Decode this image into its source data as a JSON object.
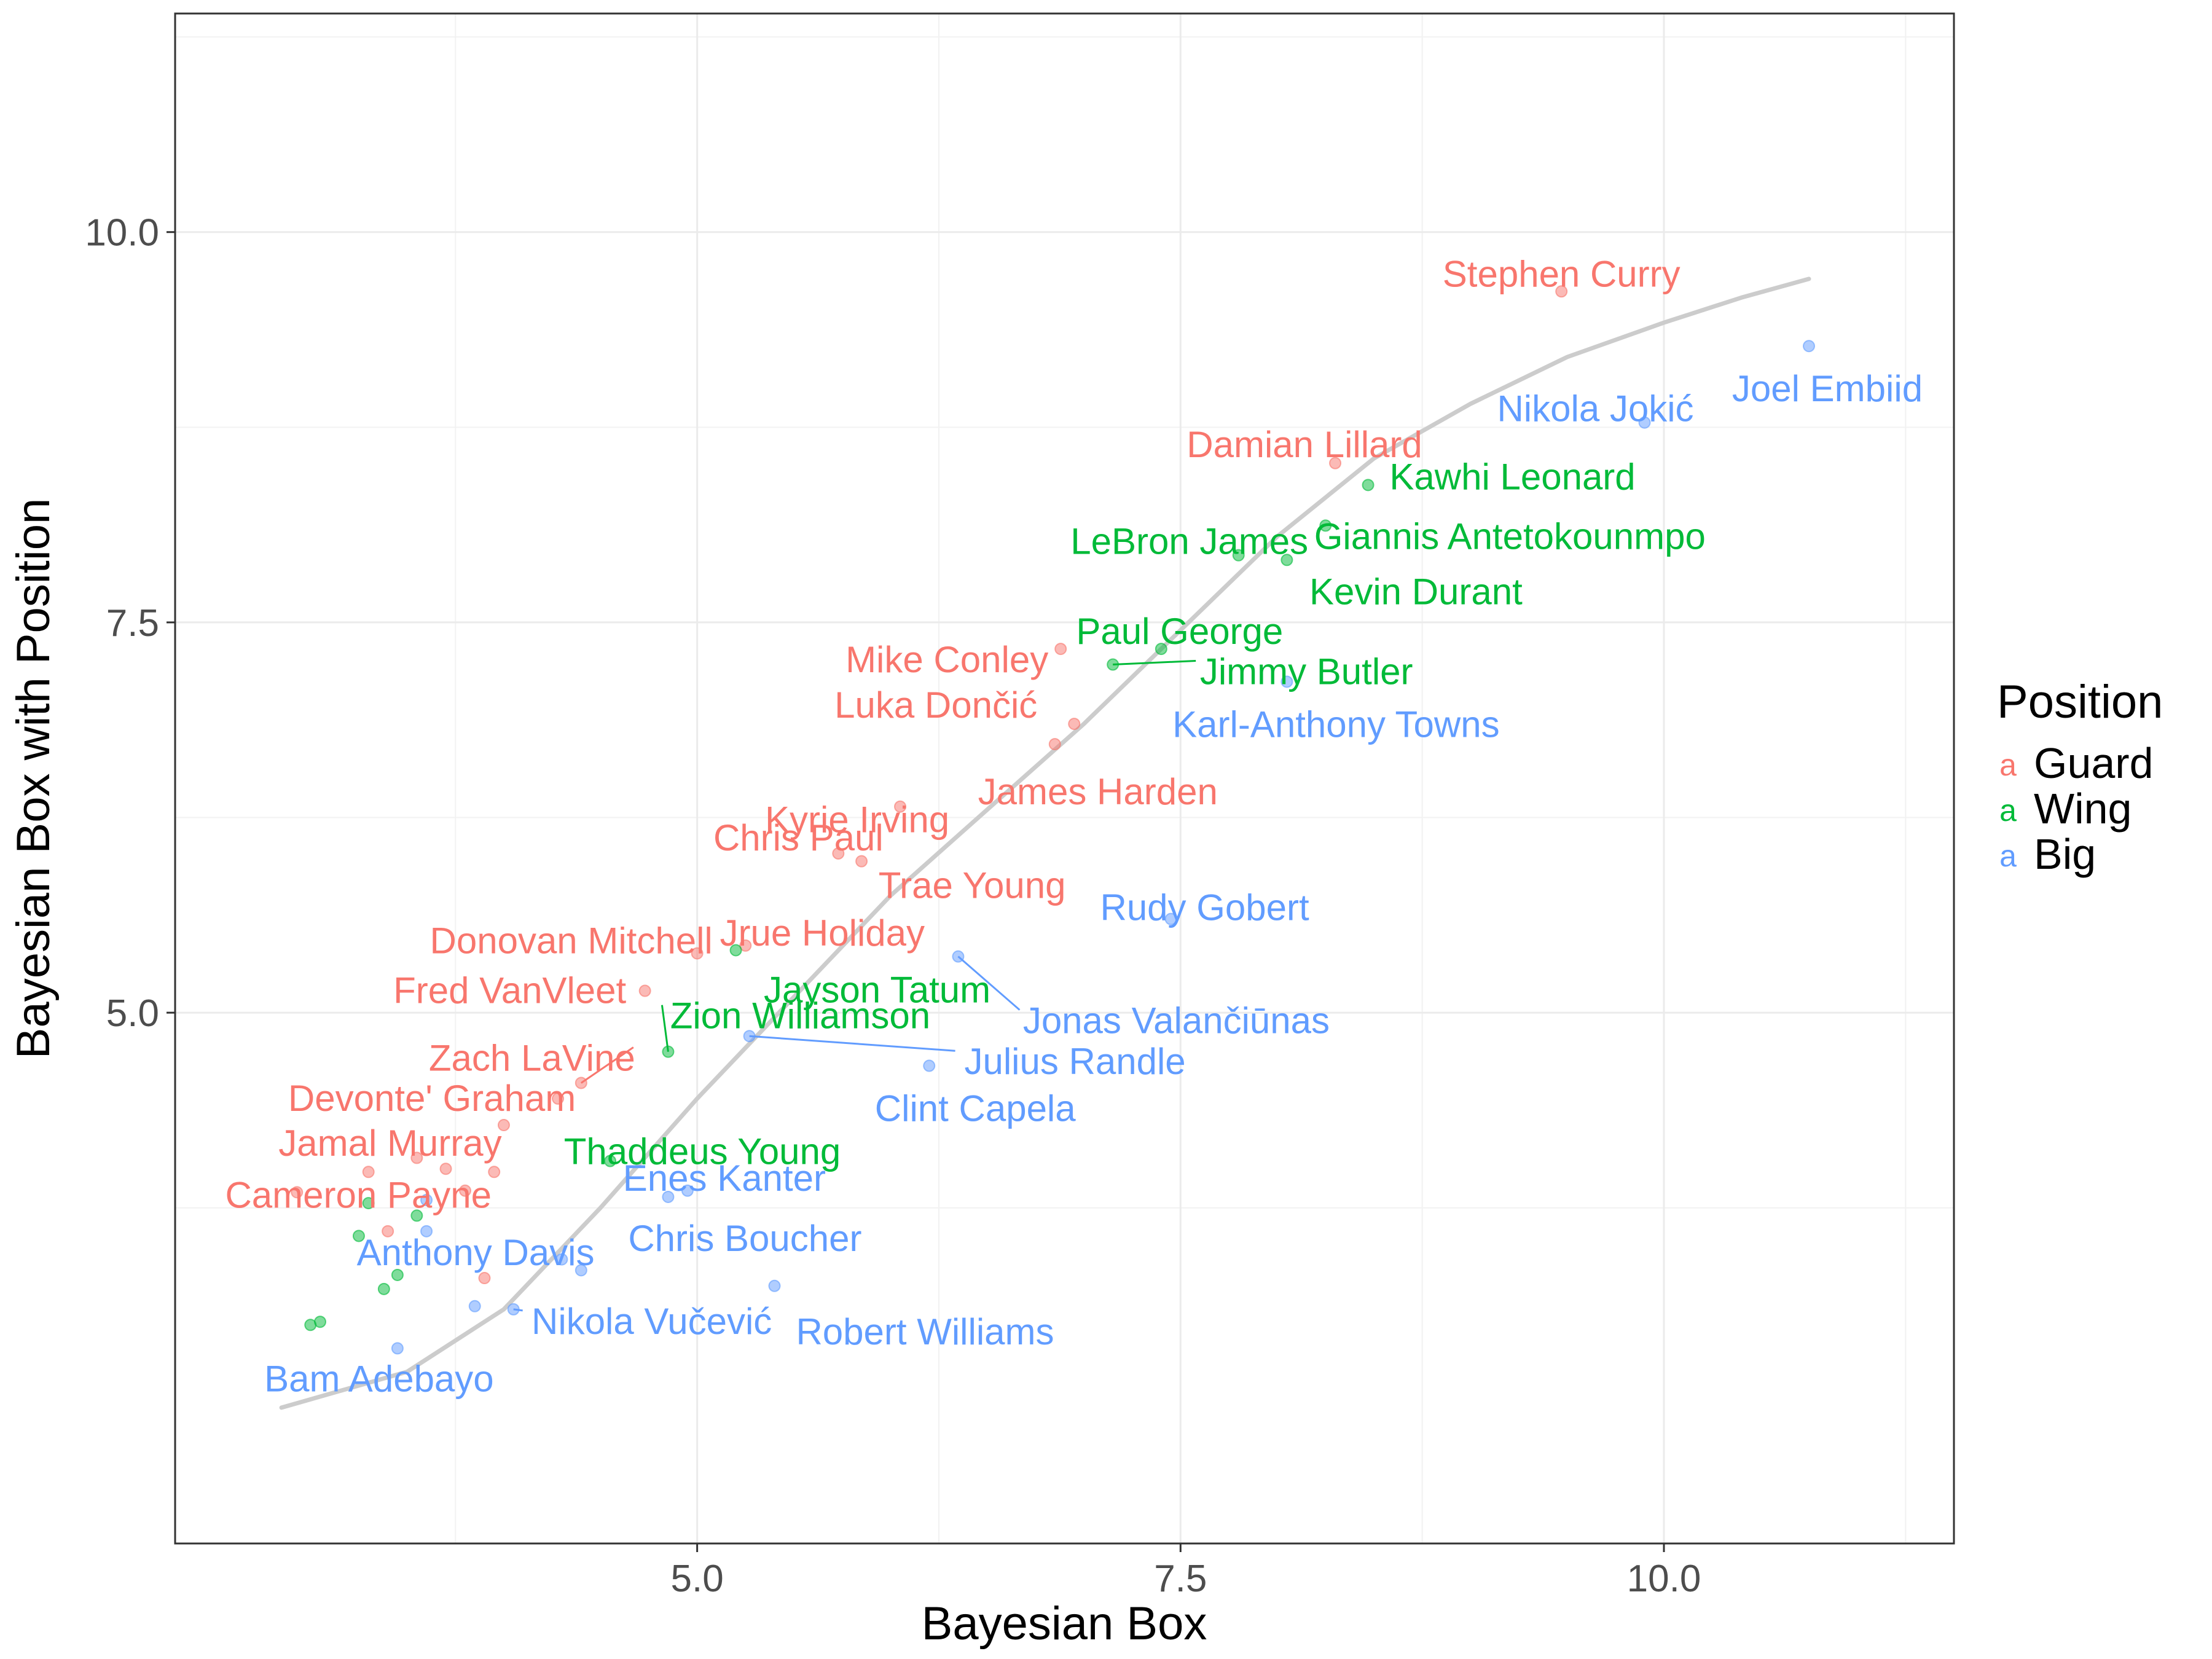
{
  "chart_data": {
    "type": "scatter",
    "xlabel": "Bayesian Box",
    "ylabel": "Bayesian Box with Position",
    "xlim": [
      2.3,
      11.5
    ],
    "ylim": [
      1.6,
      11.4
    ],
    "x_ticks": [
      5.0,
      7.5,
      10.0
    ],
    "x_tick_labels": [
      "5.0",
      "7.5",
      "10.0"
    ],
    "y_ticks": [
      5.0,
      7.5,
      10.0
    ],
    "y_tick_labels": [
      "5.0",
      "7.5",
      "10.0"
    ],
    "grid": true,
    "legend": {
      "title": "Position",
      "placement": "right",
      "key_glyph": "a",
      "entries": [
        {
          "name": "Guard",
          "color": "#F8766D"
        },
        {
          "name": "Wing",
          "color": "#00BA38"
        },
        {
          "name": "Big",
          "color": "#619CFF"
        }
      ]
    },
    "smooth_color": "#cccccc",
    "smooth": [
      {
        "x": 2.85,
        "y": 2.47
      },
      {
        "x": 3.5,
        "y": 2.7
      },
      {
        "x": 4.0,
        "y": 3.1
      },
      {
        "x": 4.5,
        "y": 3.75
      },
      {
        "x": 5.0,
        "y": 4.45
      },
      {
        "x": 5.5,
        "y": 5.1
      },
      {
        "x": 6.0,
        "y": 5.75
      },
      {
        "x": 6.5,
        "y": 6.3
      },
      {
        "x": 7.0,
        "y": 6.85
      },
      {
        "x": 7.5,
        "y": 7.45
      },
      {
        "x": 8.0,
        "y": 8.05
      },
      {
        "x": 8.5,
        "y": 8.55
      },
      {
        "x": 9.0,
        "y": 8.9
      },
      {
        "x": 9.5,
        "y": 9.2
      },
      {
        "x": 10.0,
        "y": 9.42
      },
      {
        "x": 10.4,
        "y": 9.58
      },
      {
        "x": 10.75,
        "y": 9.7
      }
    ],
    "series": [
      {
        "name": "Guard",
        "color": "#F8766D",
        "points": [
          {
            "x": 9.47,
            "y": 9.62,
            "label": "Stephen Curry"
          },
          {
            "x": 8.3,
            "y": 8.52,
            "label": "Damian Lillard"
          },
          {
            "x": 6.88,
            "y": 7.33,
            "label": "Mike Conley"
          },
          {
            "x": 6.95,
            "y": 6.85,
            "label": "Luka Dončić"
          },
          {
            "x": 6.85,
            "y": 6.72,
            "label": "James Harden"
          },
          {
            "x": 6.05,
            "y": 6.32,
            "label": "Kyrie Irving"
          },
          {
            "x": 5.73,
            "y": 6.02,
            "label": "Chris Paul"
          },
          {
            "x": 5.85,
            "y": 5.97,
            "label": "Trae Young"
          },
          {
            "x": 5.25,
            "y": 5.43,
            "label": "Jrue Holiday"
          },
          {
            "x": 5.0,
            "y": 5.38,
            "label": "Donovan Mitchell"
          },
          {
            "x": 4.73,
            "y": 5.14,
            "label": "Fred VanVleet"
          },
          {
            "x": 4.4,
            "y": 4.55,
            "label": "Zach LaVine"
          },
          {
            "x": 4.28,
            "y": 4.45,
            "label": "Devonte' Graham"
          },
          {
            "x": 4.0,
            "y": 4.28,
            "label": "Jamal Murray"
          },
          {
            "x": 2.93,
            "y": 3.85,
            "label": "Cameron Payne"
          },
          {
            "x": 3.3,
            "y": 3.98,
            "label": ""
          },
          {
            "x": 3.55,
            "y": 4.07,
            "label": ""
          },
          {
            "x": 3.7,
            "y": 4.0,
            "label": ""
          },
          {
            "x": 3.95,
            "y": 3.98,
            "label": ""
          },
          {
            "x": 3.8,
            "y": 3.86,
            "label": ""
          },
          {
            "x": 3.4,
            "y": 3.6,
            "label": ""
          },
          {
            "x": 3.9,
            "y": 3.3,
            "label": ""
          }
        ]
      },
      {
        "name": "Wing",
        "color": "#00BA38",
        "points": [
          {
            "x": 8.47,
            "y": 8.38,
            "label": "Kawhi Leonard"
          },
          {
            "x": 8.25,
            "y": 8.12,
            "label": "Giannis Antetokounmpo"
          },
          {
            "x": 7.8,
            "y": 7.93,
            "label": "LeBron James"
          },
          {
            "x": 8.05,
            "y": 7.9,
            "label": "Kevin Durant"
          },
          {
            "x": 7.4,
            "y": 7.33,
            "label": "Paul George"
          },
          {
            "x": 7.15,
            "y": 7.23,
            "label": "Jimmy Butler"
          },
          {
            "x": 5.2,
            "y": 5.4,
            "label": "Jayson Tatum"
          },
          {
            "x": 4.85,
            "y": 4.75,
            "label": "Zion Williamson"
          },
          {
            "x": 4.55,
            "y": 4.05,
            "label": "Thaddeus Young"
          },
          {
            "x": 3.3,
            "y": 3.78,
            "label": ""
          },
          {
            "x": 3.55,
            "y": 3.7,
            "label": ""
          },
          {
            "x": 3.25,
            "y": 3.57,
            "label": ""
          },
          {
            "x": 3.45,
            "y": 3.32,
            "label": ""
          },
          {
            "x": 3.38,
            "y": 3.23,
            "label": ""
          },
          {
            "x": 3.0,
            "y": 3.0,
            "label": ""
          },
          {
            "x": 3.05,
            "y": 3.02,
            "label": ""
          }
        ]
      },
      {
        "name": "Big",
        "color": "#619CFF",
        "points": [
          {
            "x": 10.75,
            "y": 9.27,
            "label": "Joel Embiid"
          },
          {
            "x": 9.9,
            "y": 8.78,
            "label": "Nikola Jokić"
          },
          {
            "x": 8.05,
            "y": 7.12,
            "label": "Karl-Anthony Towns"
          },
          {
            "x": 7.45,
            "y": 5.6,
            "label": "Rudy Gobert"
          },
          {
            "x": 6.35,
            "y": 5.36,
            "label": "Jonas Valančiūnas"
          },
          {
            "x": 5.27,
            "y": 4.85,
            "label": "Julius Randle"
          },
          {
            "x": 6.2,
            "y": 4.66,
            "label": "Clint Capela"
          },
          {
            "x": 4.95,
            "y": 3.86,
            "label": "Enes Kanter"
          },
          {
            "x": 4.85,
            "y": 3.82,
            "label": "Chris Boucher"
          },
          {
            "x": 3.6,
            "y": 3.6,
            "label": "Anthony Davis"
          },
          {
            "x": 5.4,
            "y": 3.25,
            "label": "Robert Williams"
          },
          {
            "x": 4.05,
            "y": 3.1,
            "label": "Nikola Vučević"
          },
          {
            "x": 3.45,
            "y": 2.85,
            "label": "Bam Adebayo"
          },
          {
            "x": 3.6,
            "y": 3.8,
            "label": ""
          },
          {
            "x": 3.85,
            "y": 3.12,
            "label": ""
          },
          {
            "x": 4.3,
            "y": 3.42,
            "label": ""
          },
          {
            "x": 4.4,
            "y": 3.35,
            "label": ""
          }
        ]
      }
    ]
  }
}
